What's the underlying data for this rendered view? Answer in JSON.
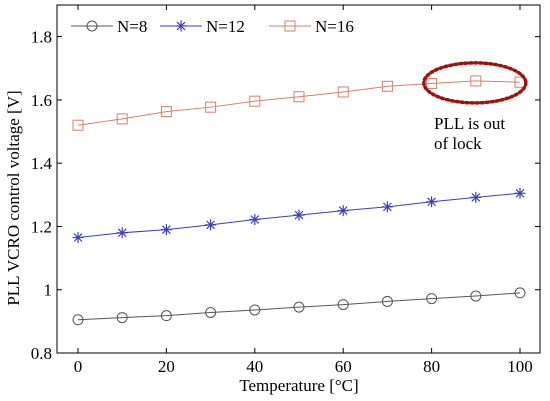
{
  "chart_data": {
    "type": "line",
    "xlabel": "Temperature [°C]",
    "ylabel": "PLL VCRO control voltage [V]",
    "xlim": [
      0,
      100
    ],
    "ylim": [
      0.8,
      1.9
    ],
    "xticks": [
      0,
      20,
      40,
      60,
      80,
      100
    ],
    "yticks": [
      0.8,
      1,
      1.2,
      1.4,
      1.6,
      1.8
    ],
    "ytick_labels": [
      "0.8",
      "1",
      "1.2",
      "1.4",
      "1.6",
      "1.8"
    ],
    "legend_position": "top-left",
    "x": [
      0,
      10,
      20,
      30,
      40,
      50,
      60,
      70,
      80,
      90,
      100
    ],
    "series": [
      {
        "name": "N=8",
        "marker": "circle",
        "color": "#555555",
        "values": [
          0.905,
          0.912,
          0.918,
          0.928,
          0.936,
          0.945,
          0.953,
          0.963,
          0.972,
          0.98,
          0.99
        ]
      },
      {
        "name": "N=12",
        "marker": "asterisk",
        "color": "#3a3fbf",
        "values": [
          1.165,
          1.18,
          1.19,
          1.205,
          1.222,
          1.236,
          1.25,
          1.262,
          1.278,
          1.292,
          1.305
        ]
      },
      {
        "name": "N=16",
        "marker": "square",
        "color": "#d4806a",
        "values": [
          1.52,
          1.54,
          1.563,
          1.577,
          1.596,
          1.61,
          1.625,
          1.643,
          1.652,
          1.66,
          1.656
        ]
      }
    ],
    "annotations": [
      {
        "text_lines": [
          "PLL is out",
          "of lock"
        ],
        "ellipse_color": "#a01010",
        "ellipse_center_data": [
          90,
          1.657
        ]
      }
    ]
  }
}
